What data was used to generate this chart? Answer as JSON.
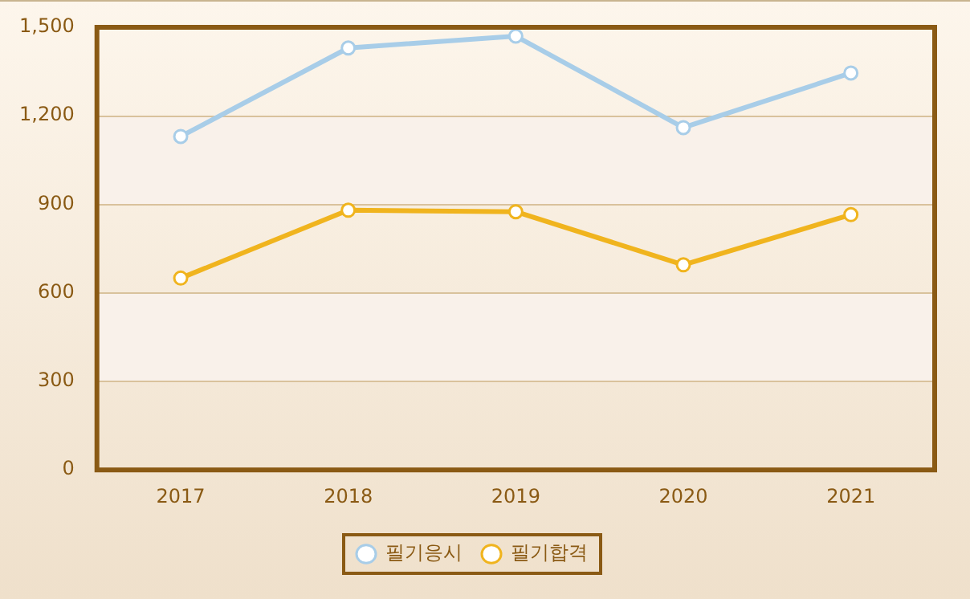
{
  "chart_data": {
    "type": "line",
    "categories": [
      "2017",
      "2018",
      "2019",
      "2020",
      "2021"
    ],
    "series": [
      {
        "name": "필기응시",
        "color": "#a8cde8",
        "values": [
          1130,
          1430,
          1470,
          1160,
          1345
        ]
      },
      {
        "name": "필기합격",
        "color": "#f0b41e",
        "values": [
          650,
          880,
          875,
          695,
          865
        ]
      }
    ],
    "ylim": [
      0,
      1500
    ],
    "yticks": [
      0,
      {
        "value": 300,
        "label": "300"
      },
      {
        "value": 600,
        "label": "600"
      },
      {
        "value": 900,
        "label": "900"
      },
      {
        "value": 1200,
        "label": "1,200"
      },
      {
        "value": 1500,
        "label": "1,500"
      }
    ],
    "bands": [
      {
        "axis": "y",
        "from": 300,
        "to": 600,
        "color": "#f9f1ea"
      },
      {
        "axis": "y",
        "from": 900,
        "to": 1200,
        "color": "#f9f1ea"
      }
    ],
    "grid": "y",
    "legend": "bottom",
    "marker": "circle",
    "line_style": "solid"
  }
}
